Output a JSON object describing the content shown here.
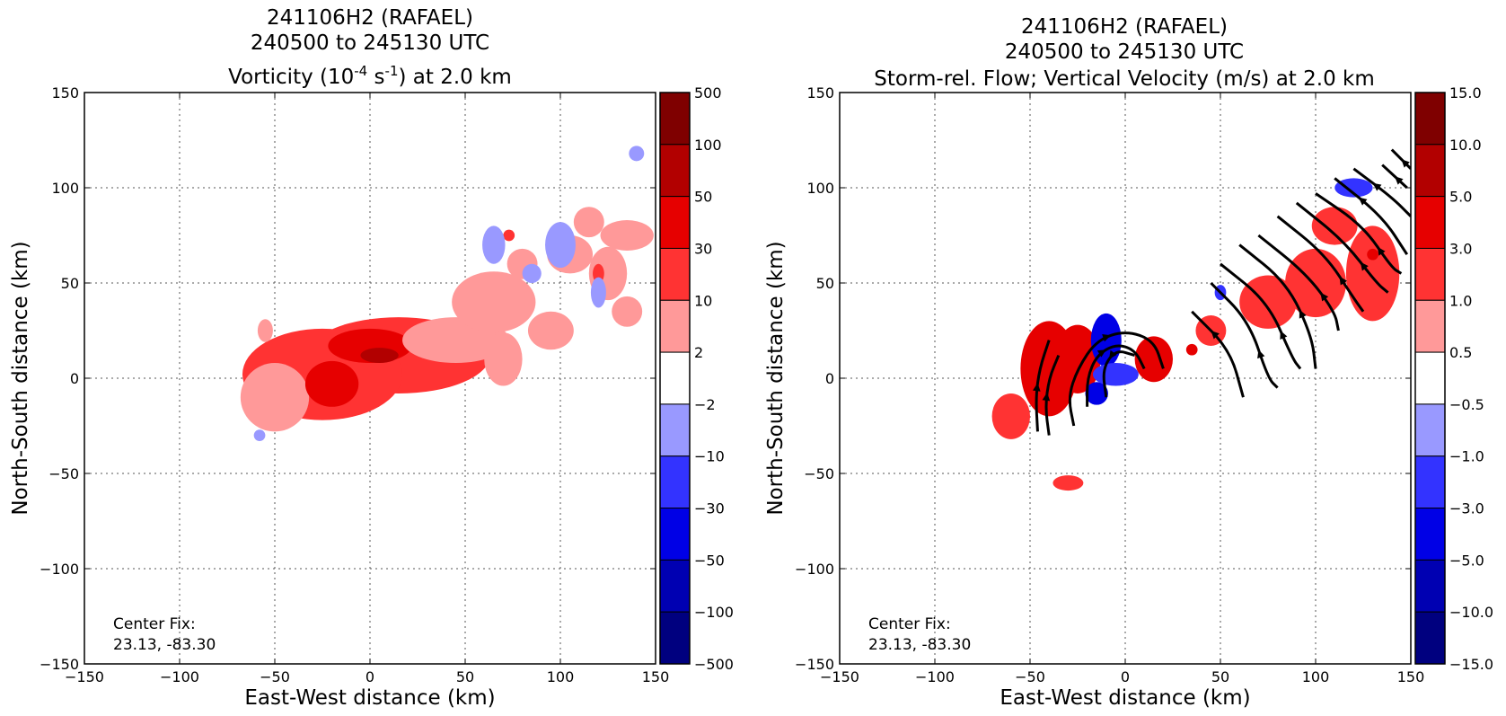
{
  "chart_data": [
    {
      "type": "heatmap",
      "title_lines": [
        "241106H2 (RAFAEL)",
        "240500 to 245130 UTC"
      ],
      "title_field": "Vorticity (10",
      "title_field_exp1": "-4",
      "title_field_mid": " s",
      "title_field_exp2": "-1",
      "title_field_end": ") at 2.0 km",
      "xlabel": "East-West distance (km)",
      "ylabel": "North-South distance (km)",
      "xlim": [
        -150,
        150
      ],
      "ylim": [
        -150,
        150
      ],
      "xticks": [
        "−150",
        "−100",
        "−50",
        "0",
        "50",
        "100",
        "150"
      ],
      "yticks": [
        "−150",
        "−100",
        "−50",
        "0",
        "50",
        "100",
        "150"
      ],
      "grid": true,
      "annotation_lines": [
        "Center Fix:",
        "23.13, -83.30"
      ],
      "colorbar": {
        "labels": [
          "500",
          "100",
          "50",
          "30",
          "10",
          "2",
          "−2",
          "−10",
          "−30",
          "−50",
          "−100",
          "−500"
        ],
        "colors": [
          "#7f0000",
          "#b20000",
          "#e60000",
          "#ff3333",
          "#ff9999",
          "#ffffff",
          "#9999ff",
          "#3333ff",
          "#0000e6",
          "#0000b2",
          "#00007f"
        ]
      },
      "regions": [
        {
          "level": 10,
          "x": 15,
          "y": 12,
          "rx": 48,
          "ry": 20
        },
        {
          "level": 10,
          "x": -25,
          "y": 2,
          "rx": 42,
          "ry": 24
        },
        {
          "level": 2,
          "x": -50,
          "y": -10,
          "rx": 18,
          "ry": 18
        },
        {
          "level": 30,
          "x": 0,
          "y": 17,
          "rx": 22,
          "ry": 9
        },
        {
          "level": 30,
          "x": -20,
          "y": -3,
          "rx": 14,
          "ry": 12
        },
        {
          "level": 50,
          "x": 5,
          "y": 12,
          "rx": 10,
          "ry": 4
        },
        {
          "level": 2,
          "x": 45,
          "y": 20,
          "rx": 28,
          "ry": 12
        },
        {
          "level": 2,
          "x": 65,
          "y": 40,
          "rx": 22,
          "ry": 16
        },
        {
          "level": 2,
          "x": 70,
          "y": 10,
          "rx": 10,
          "ry": 14
        },
        {
          "level": 2,
          "x": 95,
          "y": 25,
          "rx": 12,
          "ry": 10
        },
        {
          "level": 2,
          "x": 105,
          "y": 65,
          "rx": 12,
          "ry": 10
        },
        {
          "level": 2,
          "x": 135,
          "y": 75,
          "rx": 14,
          "ry": 8
        },
        {
          "level": 2,
          "x": 125,
          "y": 55,
          "rx": 10,
          "ry": 14
        },
        {
          "level": 2,
          "x": 115,
          "y": 82,
          "rx": 8,
          "ry": 8
        },
        {
          "level": 2,
          "x": 135,
          "y": 35,
          "rx": 8,
          "ry": 8
        },
        {
          "level": 2,
          "x": 80,
          "y": 60,
          "rx": 8,
          "ry": 8
        },
        {
          "level": 2,
          "x": -55,
          "y": 25,
          "rx": 4,
          "ry": 6
        },
        {
          "level": 10,
          "x": 73,
          "y": 75,
          "rx": 3,
          "ry": 3
        },
        {
          "level": 10,
          "x": 120,
          "y": 55,
          "rx": 3,
          "ry": 5
        },
        {
          "level": -2,
          "x": 65,
          "y": 70,
          "rx": 6,
          "ry": 10
        },
        {
          "level": -2,
          "x": 100,
          "y": 70,
          "rx": 8,
          "ry": 12
        },
        {
          "level": -2,
          "x": 120,
          "y": 45,
          "rx": 4,
          "ry": 8
        },
        {
          "level": -2,
          "x": 85,
          "y": 55,
          "rx": 5,
          "ry": 5
        },
        {
          "level": -2,
          "x": 140,
          "y": 118,
          "rx": 4,
          "ry": 4
        },
        {
          "level": -2,
          "x": -58,
          "y": -30,
          "rx": 3,
          "ry": 3
        }
      ]
    },
    {
      "type": "heatmap",
      "title_lines": [
        "241106H2 (RAFAEL)",
        "240500 to 245130 UTC",
        "Storm-rel. Flow; Vertical Velocity (m/s) at 2.0 km"
      ],
      "xlabel": "East-West distance (km)",
      "ylabel": "North-South distance (km)",
      "xlim": [
        -150,
        150
      ],
      "ylim": [
        -150,
        150
      ],
      "xticks": [
        "−150",
        "−100",
        "−50",
        "0",
        "50",
        "100",
        "150"
      ],
      "yticks": [
        "−150",
        "−100",
        "−50",
        "0",
        "50",
        "100",
        "150"
      ],
      "grid": true,
      "annotation_lines": [
        "Center Fix:",
        "23.13, -83.30"
      ],
      "colorbar": {
        "labels": [
          "15.0",
          "10.0",
          "5.0",
          "3.0",
          "1.0",
          "0.5",
          "−0.5",
          "−1.0",
          "−3.0",
          "−5.0",
          "−10.0",
          "−15.0"
        ],
        "colors": [
          "#7f0000",
          "#b20000",
          "#e60000",
          "#ff3333",
          "#ff9999",
          "#ffffff",
          "#9999ff",
          "#3333ff",
          "#0000e6",
          "#0000b2",
          "#00007f"
        ]
      },
      "regions": [
        {
          "level": 3,
          "x": -40,
          "y": 5,
          "rx": 15,
          "ry": 25
        },
        {
          "level": 3,
          "x": -25,
          "y": 10,
          "rx": 12,
          "ry": 18
        },
        {
          "level": 3,
          "x": 15,
          "y": 10,
          "rx": 10,
          "ry": 12
        },
        {
          "level": 1,
          "x": -60,
          "y": -20,
          "rx": 10,
          "ry": 12
        },
        {
          "level": 1,
          "x": 45,
          "y": 25,
          "rx": 8,
          "ry": 8
        },
        {
          "level": 1,
          "x": 75,
          "y": 40,
          "rx": 15,
          "ry": 14
        },
        {
          "level": 1,
          "x": 100,
          "y": 50,
          "rx": 16,
          "ry": 18
        },
        {
          "level": 1,
          "x": 130,
          "y": 55,
          "rx": 14,
          "ry": 25
        },
        {
          "level": 1,
          "x": 110,
          "y": 80,
          "rx": 12,
          "ry": 10
        },
        {
          "level": 1,
          "x": -30,
          "y": -55,
          "rx": 8,
          "ry": 4
        },
        {
          "level": -3,
          "x": -10,
          "y": 20,
          "rx": 8,
          "ry": 14
        },
        {
          "level": -3,
          "x": -15,
          "y": -8,
          "rx": 6,
          "ry": 6
        },
        {
          "level": -1,
          "x": -5,
          "y": 2,
          "rx": 12,
          "ry": 6
        },
        {
          "level": -1,
          "x": 120,
          "y": 100,
          "rx": 10,
          "ry": 5
        },
        {
          "level": -1,
          "x": 50,
          "y": 45,
          "rx": 3,
          "ry": 4
        },
        {
          "level": 3,
          "x": 130,
          "y": 65,
          "rx": 3,
          "ry": 3
        },
        {
          "level": 3,
          "x": 35,
          "y": 15,
          "rx": 3,
          "ry": 3
        }
      ],
      "streamlines": [
        {
          "points": [
            [
              20,
              5
            ],
            [
              15,
              20
            ],
            [
              0,
              25
            ],
            [
              -15,
              20
            ],
            [
              -25,
              5
            ],
            [
              -30,
              -10
            ],
            [
              -27,
              -25
            ]
          ]
        },
        {
          "points": [
            [
              10,
              5
            ],
            [
              5,
              15
            ],
            [
              -5,
              18
            ],
            [
              -15,
              12
            ],
            [
              -20,
              0
            ],
            [
              -20,
              -15
            ]
          ]
        },
        {
          "points": [
            [
              -10,
              -10
            ],
            [
              -12,
              5
            ],
            [
              -5,
              15
            ],
            [
              5,
              12
            ]
          ]
        },
        {
          "points": [
            [
              -35,
              12
            ],
            [
              -40,
              0
            ],
            [
              -42,
              -15
            ],
            [
              -40,
              -30
            ]
          ]
        },
        {
          "points": [
            [
              -40,
              20
            ],
            [
              -45,
              5
            ],
            [
              -47,
              -10
            ],
            [
              -46,
              -28
            ]
          ]
        },
        {
          "points": [
            [
              35,
              35
            ],
            [
              55,
              15
            ],
            [
              62,
              -10
            ]
          ]
        },
        {
          "points": [
            [
              45,
              50
            ],
            [
              65,
              30
            ],
            [
              75,
              0
            ],
            [
              80,
              -5
            ]
          ]
        },
        {
          "points": [
            [
              50,
              60
            ],
            [
              75,
              40
            ],
            [
              88,
              10
            ],
            [
              92,
              5
            ]
          ]
        },
        {
          "points": [
            [
              60,
              70
            ],
            [
              85,
              50
            ],
            [
              98,
              22
            ],
            [
              100,
              5
            ]
          ]
        },
        {
          "points": [
            [
              70,
              75
            ],
            [
              95,
              55
            ],
            [
              110,
              35
            ],
            [
              112,
              25
            ]
          ]
        },
        {
          "points": [
            [
              80,
              85
            ],
            [
              105,
              65
            ],
            [
              120,
              42
            ],
            [
              125,
              35
            ]
          ]
        },
        {
          "points": [
            [
              90,
              92
            ],
            [
              115,
              72
            ],
            [
              132,
              50
            ],
            [
              138,
              45
            ]
          ]
        },
        {
          "points": [
            [
              100,
              97
            ],
            [
              125,
              80
            ],
            [
              140,
              58
            ],
            [
              145,
              55
            ]
          ]
        },
        {
          "points": [
            [
              110,
              105
            ],
            [
              135,
              85
            ],
            [
              148,
              65
            ]
          ]
        },
        {
          "points": [
            [
              120,
              110
            ],
            [
              140,
              95
            ],
            [
              150,
              85
            ]
          ]
        },
        {
          "points": [
            [
              135,
              112
            ],
            [
              148,
              100
            ]
          ]
        },
        {
          "points": [
            [
              140,
              120
            ],
            [
              150,
              110
            ]
          ]
        }
      ]
    }
  ]
}
